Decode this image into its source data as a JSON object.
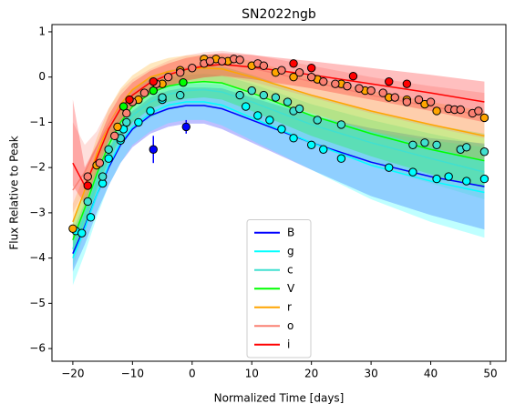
{
  "chart_data": {
    "type": "light_curve",
    "title": "SN2022ngb",
    "xlabel": "Normalized Time [days]",
    "ylabel": "Flux Relative to Peak",
    "xlim": [
      -23.5,
      52.6
    ],
    "ylim": [
      -6.28,
      1.16
    ],
    "xticks": [
      {
        "value": -20,
        "label": "−20"
      },
      {
        "value": -10,
        "label": "−10"
      },
      0,
      10,
      20,
      30,
      40,
      50
    ],
    "yticks": [
      {
        "value": -6,
        "label": "−6"
      },
      {
        "value": -5,
        "label": "−5"
      },
      {
        "value": -4,
        "label": "−4"
      },
      {
        "value": -3,
        "label": "−3"
      },
      {
        "value": -2,
        "label": "−2"
      },
      {
        "value": -1,
        "label": "−1"
      },
      0,
      1
    ],
    "legend": "lower center",
    "x": [
      -20,
      -18,
      -16,
      -14,
      -12,
      -10,
      -7,
      -4,
      -1,
      2,
      5,
      10,
      20,
      30,
      40,
      49
    ],
    "series": [
      {
        "name": "B",
        "color": "#0000ff",
        "values": [
          -3.9,
          -3.3,
          -2.6,
          -2.0,
          -1.5,
          -1.15,
          -0.85,
          -0.7,
          -0.63,
          -0.63,
          -0.7,
          -0.95,
          -1.45,
          -1.88,
          -2.2,
          -2.42
        ],
        "lower": [
          -4.3,
          -3.7,
          -3.0,
          -2.4,
          -1.9,
          -1.55,
          -1.25,
          -1.1,
          -1.03,
          -1.03,
          -1.15,
          -1.45,
          -2.05,
          -2.63,
          -3.05,
          -3.37
        ],
        "upper": [
          -3.5,
          -2.9,
          -2.2,
          -1.6,
          -1.1,
          -0.75,
          -0.45,
          -0.3,
          -0.23,
          -0.23,
          -0.25,
          -0.45,
          -0.85,
          -1.13,
          -1.35,
          -1.47
        ],
        "points": {
          "x": [
            -6.5,
            -1
          ],
          "y": [
            -1.6,
            -1.1
          ],
          "errors": [
            0.3,
            0.15
          ]
        }
      },
      {
        "name": "g",
        "color": "#00ffff",
        "values": [
          -4.0,
          -3.35,
          -2.6,
          -1.95,
          -1.45,
          -1.1,
          -0.8,
          -0.62,
          -0.55,
          -0.55,
          -0.62,
          -0.9,
          -1.45,
          -1.95,
          -2.3,
          -2.55
        ],
        "lower": [
          -4.6,
          -3.9,
          -3.1,
          -2.4,
          -1.9,
          -1.5,
          -1.2,
          -1.02,
          -0.95,
          -0.95,
          -1.07,
          -1.4,
          -2.05,
          -2.7,
          -3.2,
          -3.55
        ],
        "upper": [
          -3.4,
          -2.8,
          -2.1,
          -1.5,
          -1.0,
          -0.7,
          -0.4,
          -0.22,
          -0.15,
          -0.15,
          -0.17,
          -0.4,
          -0.85,
          -1.2,
          -1.4,
          -1.55
        ],
        "points": {
          "x": [
            -19.5,
            -18.5,
            -17,
            -15,
            -14,
            -12,
            -11.5,
            -9,
            -7,
            -5,
            9,
            11,
            13,
            15,
            17,
            20,
            22,
            25,
            33,
            37,
            41,
            43,
            46,
            49
          ],
          "y": [
            -3.4,
            -3.45,
            -3.1,
            -2.35,
            -1.8,
            -1.4,
            -1.15,
            -1.0,
            -0.75,
            -0.5,
            -0.65,
            -0.85,
            -0.95,
            -1.15,
            -1.35,
            -1.5,
            -1.6,
            -1.8,
            -2.0,
            -2.1,
            -2.25,
            -2.2,
            -2.3,
            -2.25
          ]
        }
      },
      {
        "name": "c",
        "color": "#40e0d0",
        "values": [
          -3.8,
          -3.1,
          -2.35,
          -1.7,
          -1.2,
          -0.85,
          -0.55,
          -0.38,
          -0.3,
          -0.28,
          -0.33,
          -0.55,
          -1.05,
          -1.45,
          -1.8,
          -2.1
        ],
        "lower": [
          -4.2,
          -3.45,
          -2.7,
          -2.05,
          -1.55,
          -1.2,
          -0.9,
          -0.73,
          -0.65,
          -0.63,
          -0.7,
          -0.95,
          -1.5,
          -1.95,
          -2.35,
          -2.7
        ],
        "upper": [
          -3.4,
          -2.75,
          -2.0,
          -1.35,
          -0.85,
          -0.5,
          -0.2,
          -0.03,
          0.05,
          0.07,
          0.04,
          -0.15,
          -0.6,
          -0.95,
          -1.25,
          -1.5
        ],
        "points": {
          "x": [
            -17.5,
            -15,
            -14,
            -12,
            -11,
            -5,
            -2,
            8,
            10,
            12,
            14,
            16,
            17,
            18,
            21,
            25,
            37,
            39,
            41,
            45,
            46,
            49
          ],
          "y": [
            -2.75,
            -2.2,
            -1.6,
            -1.35,
            -1.0,
            -0.45,
            -0.4,
            -0.4,
            -0.3,
            -0.4,
            -0.45,
            -0.55,
            -0.75,
            -0.7,
            -0.95,
            -1.05,
            -1.5,
            -1.45,
            -1.5,
            -1.6,
            -1.55,
            -1.65
          ]
        }
      },
      {
        "name": "V",
        "color": "#00ff00",
        "values": [
          -3.6,
          -2.9,
          -2.15,
          -1.5,
          -1.0,
          -0.65,
          -0.35,
          -0.2,
          -0.13,
          -0.1,
          -0.13,
          -0.35,
          -0.85,
          -1.25,
          -1.6,
          -1.85
        ],
        "lower": [
          -4.0,
          -3.25,
          -2.5,
          -1.85,
          -1.35,
          -1.0,
          -0.7,
          -0.55,
          -0.48,
          -0.45,
          -0.5,
          -0.75,
          -1.3,
          -1.75,
          -2.15,
          -2.45
        ],
        "upper": [
          -3.2,
          -2.55,
          -1.8,
          -1.15,
          -0.65,
          -0.3,
          0.0,
          0.15,
          0.22,
          0.25,
          0.24,
          0.05,
          -0.4,
          -0.75,
          -1.05,
          -1.25
        ],
        "points": {
          "x": [
            -11.5,
            -6.5,
            -1.5
          ],
          "y": [
            -0.65,
            -0.3,
            -0.12
          ]
        }
      },
      {
        "name": "r",
        "color": "#ffa500",
        "values": [
          -3.2,
          -2.5,
          -1.7,
          -1.05,
          -0.6,
          -0.28,
          0.0,
          0.12,
          0.18,
          0.2,
          0.18,
          0.0,
          -0.4,
          -0.75,
          -1.05,
          -1.3
        ],
        "lower": [
          -3.6,
          -2.85,
          -2.05,
          -1.4,
          -0.95,
          -0.6,
          -0.3,
          -0.18,
          -0.12,
          -0.1,
          -0.15,
          -0.35,
          -0.8,
          -1.2,
          -1.55,
          -1.85
        ],
        "upper": [
          -2.8,
          -2.15,
          -1.35,
          -0.7,
          -0.25,
          0.04,
          0.3,
          0.42,
          0.48,
          0.5,
          0.5,
          0.35,
          0.0,
          -0.3,
          -0.55,
          -0.75
        ],
        "points": {
          "x": [
            -20,
            -16,
            -12.5,
            -9,
            -5,
            -2,
            2,
            4,
            6,
            10,
            14,
            17,
            21,
            25,
            29,
            33,
            36,
            39,
            41,
            49
          ],
          "y": [
            -3.35,
            -1.95,
            -1.1,
            -0.5,
            -0.15,
            0.15,
            0.4,
            0.4,
            0.35,
            0.25,
            0.1,
            0.0,
            -0.05,
            -0.15,
            -0.3,
            -0.45,
            -0.5,
            -0.6,
            -0.75,
            -0.9
          ]
        }
      },
      {
        "name": "o",
        "color": "#fa8072",
        "values": [
          -2.5,
          -2.1,
          -1.55,
          -1.05,
          -0.65,
          -0.35,
          -0.1,
          0.08,
          0.2,
          0.27,
          0.3,
          0.2,
          -0.1,
          -0.4,
          -0.65,
          -0.85
        ],
        "lower": [
          -3.0,
          -2.5,
          -1.9,
          -1.4,
          -1.0,
          -0.65,
          -0.38,
          -0.2,
          -0.08,
          -0.01,
          0.02,
          -0.1,
          -0.45,
          -0.8,
          -1.1,
          -1.35
        ],
        "upper": [
          -1.0,
          -1.5,
          -1.2,
          -0.7,
          -0.3,
          -0.05,
          0.18,
          0.36,
          0.48,
          0.55,
          0.58,
          0.5,
          0.25,
          0.0,
          -0.2,
          -0.35
        ],
        "points": {
          "x": [
            -17.5,
            -15.5,
            -13,
            -11,
            -10,
            -8,
            -6,
            -4,
            -2,
            0,
            2,
            3,
            5,
            7,
            8,
            11,
            12,
            15,
            18,
            20,
            22,
            24,
            26,
            28,
            30,
            32,
            34,
            36,
            38,
            40,
            43,
            44,
            45,
            47,
            48
          ],
          "y": [
            -2.2,
            -1.9,
            -1.3,
            -0.8,
            -0.55,
            -0.35,
            -0.15,
            0.0,
            0.1,
            0.2,
            0.3,
            0.35,
            0.35,
            0.4,
            0.38,
            0.3,
            0.25,
            0.15,
            0.1,
            0.0,
            -0.1,
            -0.15,
            -0.2,
            -0.25,
            -0.3,
            -0.35,
            -0.45,
            -0.55,
            -0.5,
            -0.55,
            -0.7,
            -0.72,
            -0.72,
            -0.8,
            -0.75
          ]
        }
      },
      {
        "name": "i",
        "color": "#ff0000",
        "values": [
          -1.9,
          -2.4,
          -1.8,
          -1.15,
          -0.7,
          -0.4,
          -0.12,
          0.05,
          0.17,
          0.24,
          0.28,
          0.22,
          0.05,
          -0.15,
          -0.35,
          -0.55
        ],
        "lower": [
          -2.4,
          -2.8,
          -2.1,
          -1.45,
          -1.0,
          -0.68,
          -0.38,
          -0.2,
          -0.08,
          -0.01,
          0.03,
          -0.05,
          -0.25,
          -0.5,
          -0.75,
          -1.0
        ],
        "upper": [
          -0.5,
          -2.0,
          -1.5,
          -0.85,
          -0.4,
          -0.12,
          0.14,
          0.3,
          0.42,
          0.49,
          0.53,
          0.49,
          0.35,
          0.2,
          0.05,
          -0.1
        ],
        "points": {
          "x": [
            -17.5,
            -10.5,
            -6.5,
            17,
            20,
            27,
            33,
            36
          ],
          "y": [
            -2.4,
            -0.5,
            -0.1,
            0.3,
            0.2,
            0.02,
            -0.1,
            -0.15
          ]
        }
      }
    ]
  }
}
